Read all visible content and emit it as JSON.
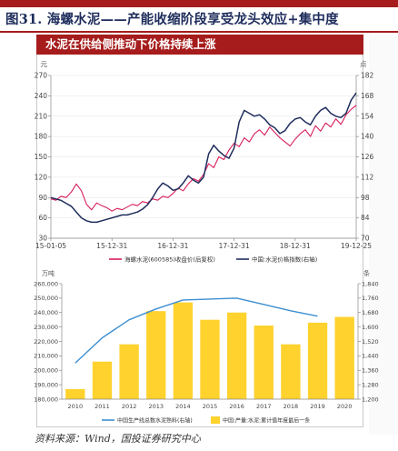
{
  "figure": {
    "title": "图31. 海螺水泥——产能收缩阶段享受龙头效应+集中度",
    "panel_title": "水泥在供给侧推动下价格持续上涨",
    "source": "资料来源：Wind，国投证券研究中心"
  },
  "colors": {
    "accent_red": "#a61c1c",
    "price_line": "#d81e5b",
    "index_line": "#1f2d5c",
    "bar_yellow": "#ffd22e",
    "capacity_line": "#3d8fd1"
  },
  "chart_data": [
    {
      "type": "line",
      "left_unit": "元",
      "right_unit": "点",
      "x_tick_labels": [
        "15-01-05",
        "15-12-31",
        "16-12-31",
        "17-12-31",
        "18-12-31",
        "19-12-25"
      ],
      "x_tick_positions": [
        0,
        12,
        24,
        36,
        48,
        60
      ],
      "xlim": [
        0,
        60
      ],
      "ylim_left": [
        30,
        270
      ],
      "yticks_left": [
        30,
        60,
        90,
        120,
        150,
        180,
        210,
        240,
        270
      ],
      "ylim_right": [
        70,
        182
      ],
      "yticks_right": [
        70,
        84,
        98,
        112,
        126,
        140,
        154,
        168,
        182
      ],
      "series": [
        {
          "name": "海螺水泥(600585)收盘价(后复权)",
          "axis": "left",
          "color": "#d81e5b",
          "x": [
            0,
            1,
            2,
            3,
            4,
            5,
            6,
            7,
            8,
            9,
            10,
            11,
            12,
            13,
            14,
            15,
            16,
            17,
            18,
            19,
            20,
            21,
            22,
            23,
            24,
            25,
            26,
            27,
            28,
            29,
            30,
            31,
            32,
            33,
            34,
            35,
            36,
            37,
            38,
            39,
            40,
            41,
            42,
            43,
            44,
            45,
            46,
            47,
            48,
            49,
            50,
            51,
            52,
            53,
            54,
            55,
            56,
            57,
            58,
            59,
            60
          ],
          "y": [
            88,
            86,
            92,
            90,
            98,
            110,
            100,
            80,
            72,
            82,
            78,
            75,
            70,
            74,
            72,
            76,
            80,
            78,
            84,
            82,
            88,
            86,
            92,
            90,
            96,
            104,
            100,
            110,
            118,
            114,
            124,
            140,
            134,
            150,
            146,
            160,
            170,
            165,
            178,
            172,
            184,
            190,
            182,
            194,
            186,
            178,
            172,
            166,
            176,
            184,
            190,
            180,
            196,
            188,
            200,
            194,
            206,
            198,
            212,
            220,
            226
          ]
        },
        {
          "name": "中国:水泥价格指数(右轴)",
          "axis": "right",
          "color": "#1f2d5c",
          "x": [
            0,
            1,
            2,
            3,
            4,
            5,
            6,
            7,
            8,
            9,
            10,
            11,
            12,
            13,
            14,
            15,
            16,
            17,
            18,
            19,
            20,
            21,
            22,
            23,
            24,
            25,
            26,
            27,
            28,
            29,
            30,
            31,
            32,
            33,
            34,
            35,
            36,
            37,
            38,
            39,
            40,
            41,
            42,
            43,
            44,
            45,
            46,
            47,
            48,
            49,
            50,
            51,
            52,
            53,
            54,
            55,
            56,
            57,
            58,
            59,
            60
          ],
          "y": [
            98,
            97,
            96,
            94,
            92,
            88,
            84,
            82,
            81,
            81,
            82,
            83,
            84,
            85,
            86,
            86,
            87,
            88,
            90,
            93,
            98,
            104,
            108,
            106,
            103,
            104,
            108,
            113,
            110,
            108,
            112,
            128,
            134,
            130,
            127,
            125,
            132,
            150,
            158,
            156,
            154,
            155,
            152,
            148,
            146,
            142,
            144,
            149,
            152,
            153,
            150,
            148,
            154,
            158,
            160,
            156,
            154,
            153,
            156,
            165,
            170
          ]
        }
      ]
    },
    {
      "type": "bar",
      "left_unit": "万吨",
      "right_unit": "条",
      "categories": [
        "2010",
        "2011",
        "2012",
        "2013",
        "2014",
        "2015",
        "2016",
        "2017",
        "2018",
        "2019",
        "2020"
      ],
      "ylim_left": [
        180000,
        260000
      ],
      "yticks_left": [
        180000,
        190000,
        200000,
        210000,
        220000,
        230000,
        240000,
        250000,
        260000
      ],
      "ylim_right": [
        1200,
        1840
      ],
      "yticks_right": [
        1200,
        1280,
        1360,
        1440,
        1520,
        1600,
        1680,
        1760,
        1840
      ],
      "series": [
        {
          "name": "中国:产量:水泥:累计值年度最后一条",
          "axis": "left",
          "type": "bar",
          "color": "#ffd22e",
          "values": [
            187000,
            206000,
            218000,
            241000,
            247000,
            235000,
            240000,
            231000,
            218000,
            233000,
            237000
          ]
        },
        {
          "name": "中国生产线总数水泥熟料(右轴)",
          "axis": "right",
          "type": "line",
          "color": "#3d8fd1",
          "values": [
            1400,
            1540,
            1640,
            1700,
            1750,
            1755,
            1760,
            1725,
            1690,
            1660,
            null
          ]
        }
      ]
    }
  ]
}
